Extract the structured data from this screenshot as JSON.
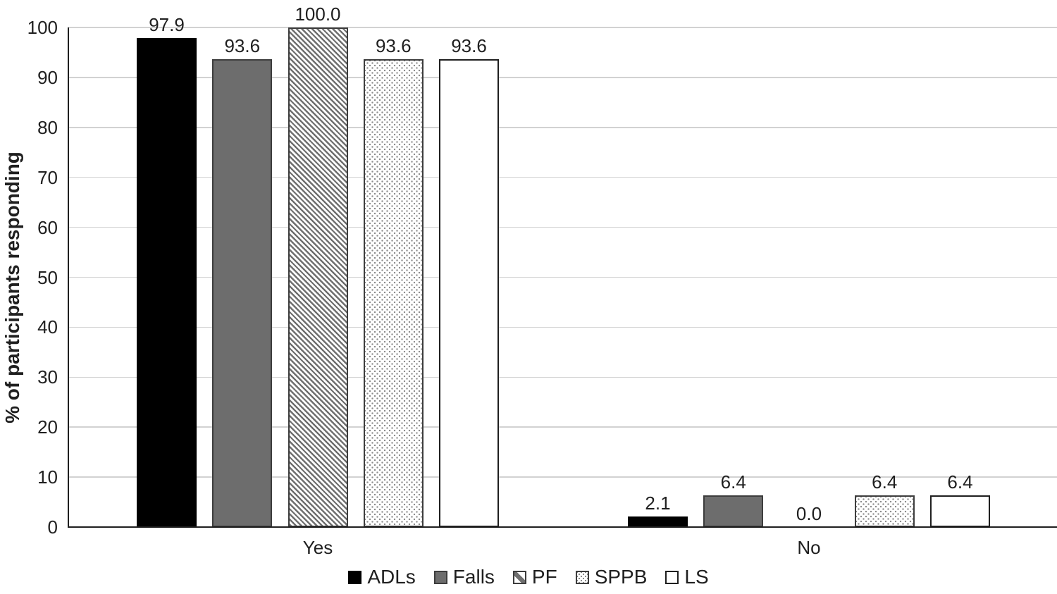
{
  "chart_data": {
    "type": "bar",
    "title": "",
    "xlabel": "",
    "ylabel": "% of participants responding",
    "categories": [
      "Yes",
      "No"
    ],
    "series": [
      {
        "name": "ADLs",
        "style": "adls",
        "pattern": "solid-black",
        "values": [
          97.9,
          2.1
        ]
      },
      {
        "name": "Falls",
        "style": "falls",
        "pattern": "solid-gray",
        "values": [
          93.6,
          6.4
        ]
      },
      {
        "name": "PF",
        "style": "pf",
        "pattern": "diagonal-hatch",
        "values": [
          100.0,
          0.0
        ]
      },
      {
        "name": "SPPB",
        "style": "sppb",
        "pattern": "dots",
        "values": [
          93.6,
          6.4
        ]
      },
      {
        "name": "LS",
        "style": "ls",
        "pattern": "white",
        "values": [
          93.6,
          6.4
        ]
      }
    ],
    "data_labels": {
      "Yes": [
        "97.9",
        "93.6",
        "100.0",
        "93.6",
        "93.6"
      ],
      "No": [
        "2.1",
        "6.4",
        "0.0",
        "6.4",
        "6.4"
      ]
    },
    "ylim": [
      0,
      100
    ],
    "yticks": [
      0,
      10,
      20,
      30,
      40,
      50,
      60,
      70,
      80,
      90,
      100
    ],
    "grid": true,
    "legend_position": "bottom"
  },
  "colors": {
    "bar_black": "#000000",
    "bar_gray": "#6d6d6d",
    "hatch_stripe": "#6f6f6f",
    "dot": "#8c8c8c",
    "border_dark": "#3d3d3d",
    "border_black": "#1f1f1f",
    "text": "#1f1f1f",
    "gridline": "#d2d2d2",
    "axis": "#1f1f1f"
  }
}
